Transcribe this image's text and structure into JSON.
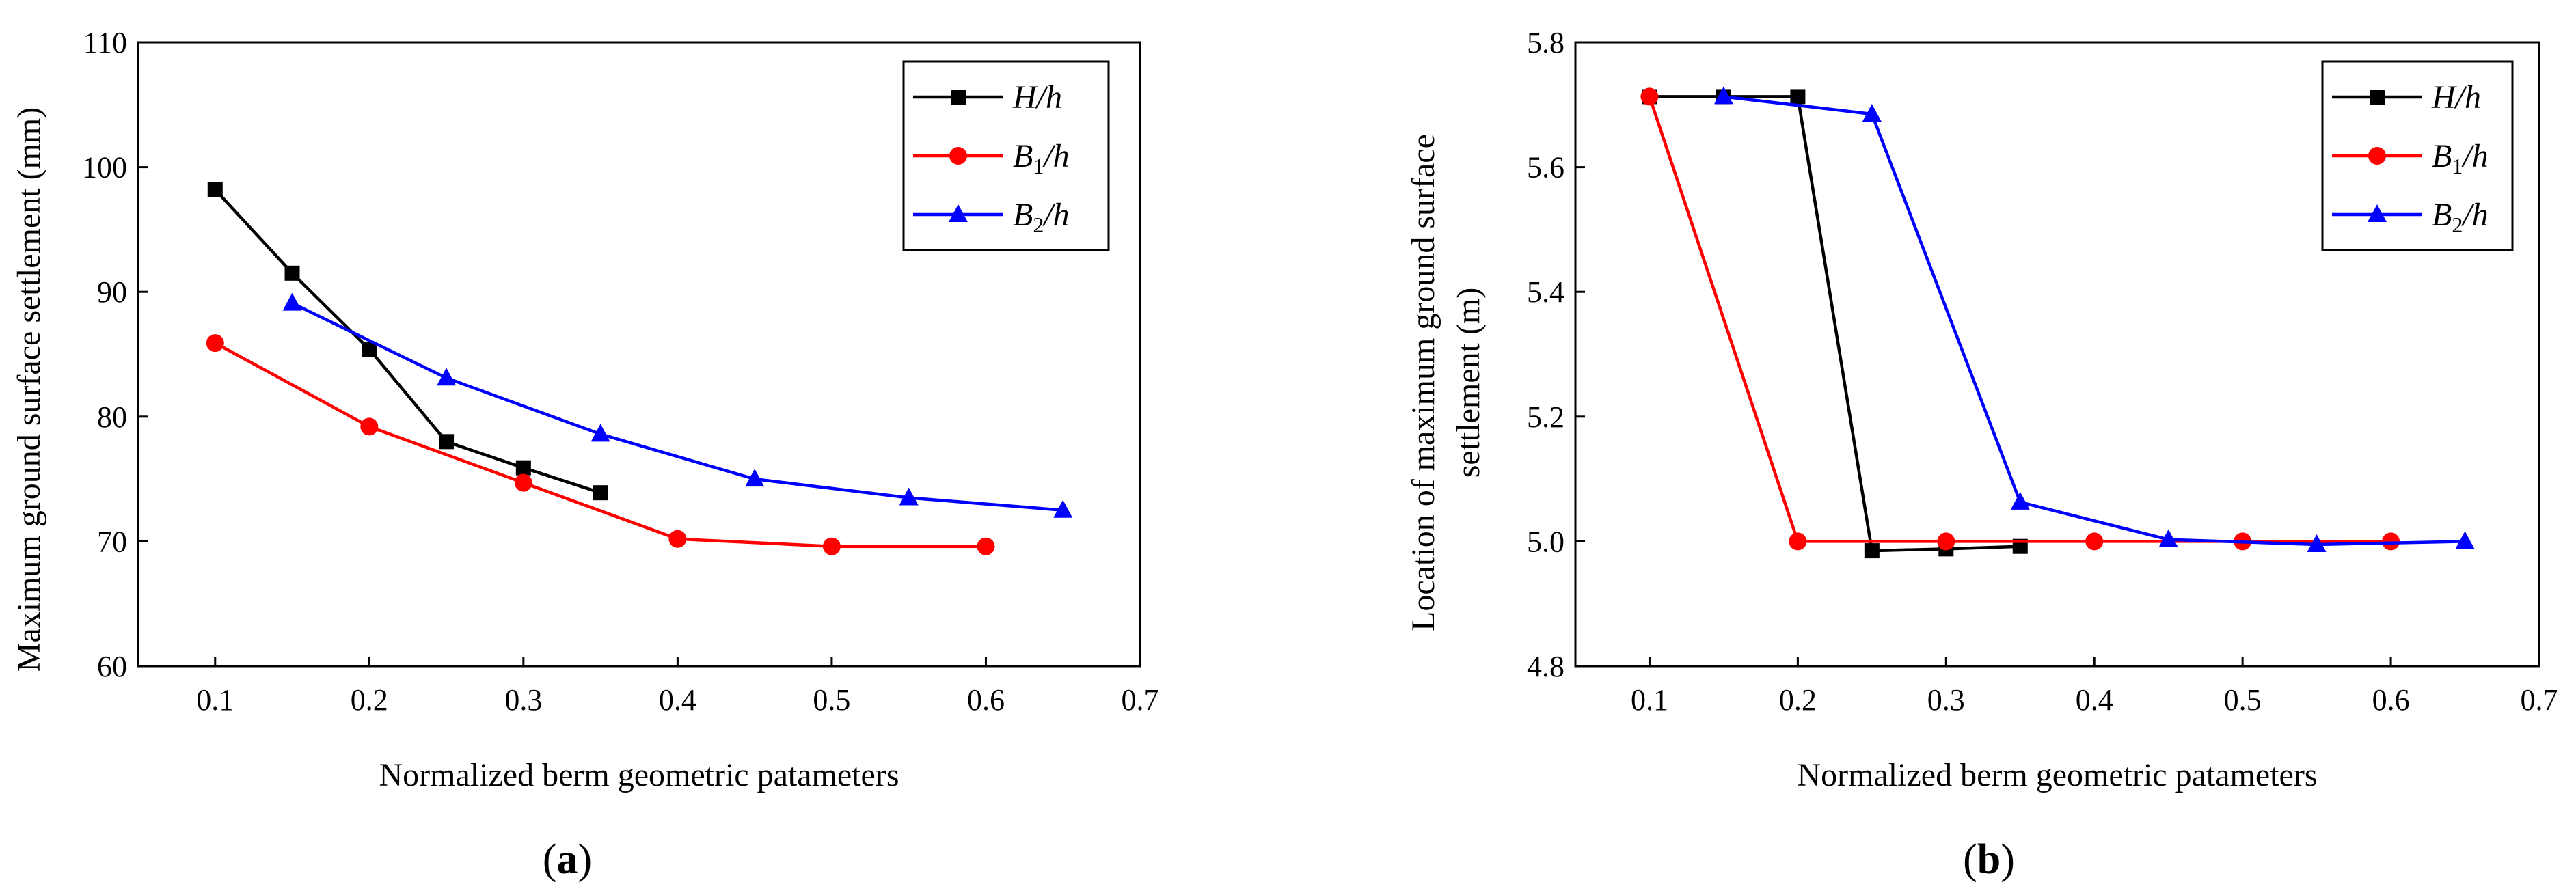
{
  "figure": {
    "panels": [
      {
        "label_open": "(",
        "label_letter": "a",
        "label_close": ")"
      },
      {
        "label_open": "(",
        "label_letter": "b",
        "label_close": ")"
      }
    ]
  },
  "chart_data": [
    {
      "type": "line",
      "title": "",
      "xlabel": "Normalized berm geometric patameters",
      "ylabel": "Maximum ground surface settlement (mm)",
      "xlim": [
        0.05,
        0.7
      ],
      "ylim": [
        60,
        110
      ],
      "xticks": [
        0.1,
        0.2,
        0.3,
        0.4,
        0.5,
        0.6,
        0.7
      ],
      "yticks": [
        60,
        70,
        80,
        90,
        100,
        110
      ],
      "xtick_labels": [
        "0.1",
        "0.2",
        "0.3",
        "0.4",
        "0.5",
        "0.6",
        "0.7"
      ],
      "ytick_labels": [
        "60",
        "70",
        "80",
        "90",
        "100",
        "110"
      ],
      "legend_position": "top-right",
      "series": [
        {
          "name": "H/h",
          "base": "H",
          "sub": "",
          "tail": "/h",
          "color": "#000000",
          "marker": "square",
          "x": [
            0.1,
            0.15,
            0.2,
            0.25,
            0.3,
            0.35
          ],
          "y": [
            98.2,
            91.5,
            85.4,
            78.0,
            75.9,
            73.9
          ]
        },
        {
          "name": "B1/h",
          "base": "B",
          "sub": "1",
          "tail": "/h",
          "color": "#ff0000",
          "marker": "circle",
          "x": [
            0.1,
            0.2,
            0.3,
            0.4,
            0.5,
            0.6
          ],
          "y": [
            85.9,
            79.2,
            74.7,
            70.2,
            69.6,
            69.6
          ]
        },
        {
          "name": "B2/h",
          "base": "B",
          "sub": "2",
          "tail": "/h",
          "color": "#0000ff",
          "marker": "triangle",
          "x": [
            0.15,
            0.25,
            0.35,
            0.45,
            0.55,
            0.65
          ],
          "y": [
            89.1,
            83.1,
            78.6,
            75.0,
            73.5,
            72.5
          ]
        }
      ]
    },
    {
      "type": "line",
      "title": "",
      "xlabel": "Normalized berm geometric patameters",
      "ylabel_line1": "Location of maximum ground surface",
      "ylabel_line2": "settlement (m)",
      "xlim": [
        0.05,
        0.7
      ],
      "ylim": [
        4.8,
        5.8
      ],
      "xticks": [
        0.1,
        0.2,
        0.3,
        0.4,
        0.5,
        0.6,
        0.7
      ],
      "yticks": [
        4.8,
        5.0,
        5.2,
        5.4,
        5.6,
        5.8
      ],
      "xtick_labels": [
        "0.1",
        "0.2",
        "0.3",
        "0.4",
        "0.5",
        "0.6",
        "0.7"
      ],
      "ytick_labels": [
        "4.8",
        "5.0",
        "5.2",
        "5.4",
        "5.6",
        "5.8"
      ],
      "legend_position": "top-right",
      "series": [
        {
          "name": "H/h",
          "base": "H",
          "sub": "",
          "tail": "/h",
          "color": "#000000",
          "marker": "square",
          "x": [
            0.1,
            0.15,
            0.2,
            0.25,
            0.3,
            0.35
          ],
          "y": [
            5.713,
            5.713,
            5.713,
            4.985,
            4.988,
            4.992
          ]
        },
        {
          "name": "B1/h",
          "base": "B",
          "sub": "1",
          "tail": "/h",
          "color": "#ff0000",
          "marker": "circle",
          "x": [
            0.1,
            0.2,
            0.3,
            0.4,
            0.5,
            0.6
          ],
          "y": [
            5.713,
            5.0,
            5.0,
            5.0,
            5.0,
            5.0
          ]
        },
        {
          "name": "B2/h",
          "base": "B",
          "sub": "2",
          "tail": "/h",
          "color": "#0000ff",
          "marker": "triangle",
          "x": [
            0.15,
            0.25,
            0.35,
            0.45,
            0.55,
            0.65
          ],
          "y": [
            5.713,
            5.685,
            5.063,
            5.003,
            4.995,
            5.0
          ]
        }
      ]
    }
  ]
}
